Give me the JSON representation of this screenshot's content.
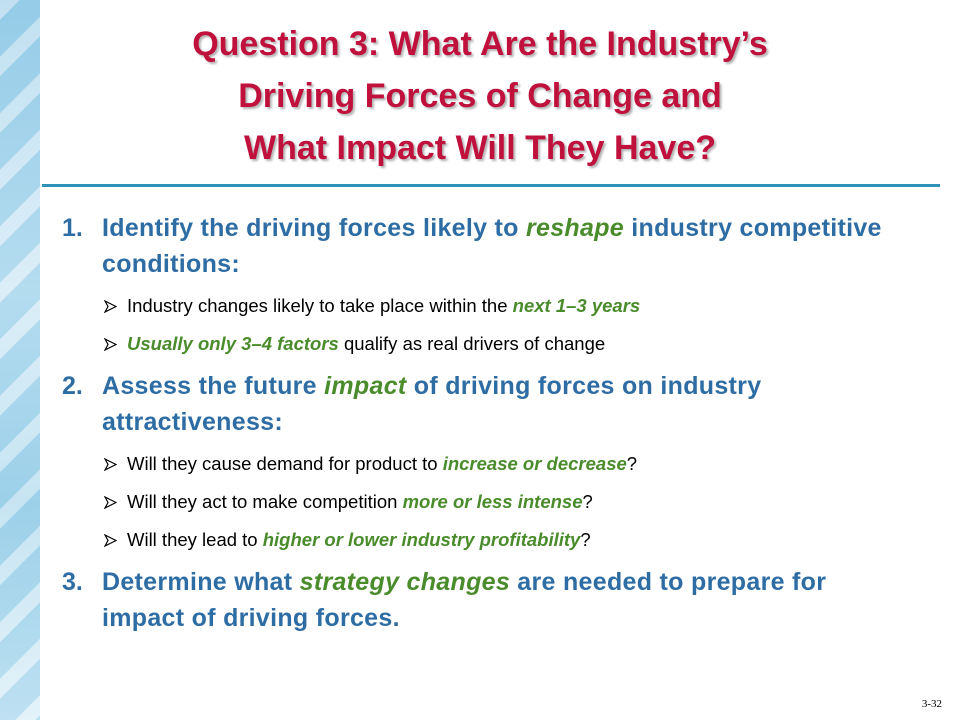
{
  "title_lines": [
    "Question 3: What Are the Industry’s",
    "Driving Forces of Change and",
    "What Impact Will They Have?"
  ],
  "items": [
    {
      "number": "1.",
      "segments": [
        {
          "text": "Identify the driving forces likely to ",
          "emphasis": false
        },
        {
          "text": "reshape",
          "emphasis": true
        },
        {
          "text": " industry competitive conditions:",
          "emphasis": false
        }
      ],
      "subitems": [
        {
          "segments": [
            {
              "text": "Industry changes likely to take place within the ",
              "emphasis": false
            },
            {
              "text": "next 1–3 years",
              "emphasis": true
            }
          ]
        },
        {
          "segments": [
            {
              "text": "Usually only 3–4 factors",
              "emphasis": true
            },
            {
              "text": " qualify as real drivers of change",
              "emphasis": false
            }
          ]
        }
      ]
    },
    {
      "number": "2.",
      "segments": [
        {
          "text": "Assess the future ",
          "emphasis": false
        },
        {
          "text": "impact",
          "emphasis": true
        },
        {
          "text": " of driving forces on industry attractiveness:",
          "emphasis": false
        }
      ],
      "subitems": [
        {
          "segments": [
            {
              "text": "Will they cause demand for product to ",
              "emphasis": false
            },
            {
              "text": "increase or decrease",
              "emphasis": true
            },
            {
              "text": "?",
              "emphasis": false
            }
          ]
        },
        {
          "segments": [
            {
              "text": "Will they act to make competition ",
              "emphasis": false
            },
            {
              "text": "more or less intense",
              "emphasis": true
            },
            {
              "text": "?",
              "emphasis": false
            }
          ]
        },
        {
          "segments": [
            {
              "text": "Will they lead to ",
              "emphasis": false
            },
            {
              "text": "higher or lower industry profitability",
              "emphasis": true
            },
            {
              "text": "?",
              "emphasis": false
            }
          ]
        }
      ]
    },
    {
      "number": "3.",
      "segments": [
        {
          "text": "Determine what ",
          "emphasis": false
        },
        {
          "text": "strategy changes",
          "emphasis": true
        },
        {
          "text": " are needed to prepare for impact of driving forces.",
          "emphasis": false
        }
      ],
      "subitems": []
    }
  ],
  "page_number": "3-32"
}
